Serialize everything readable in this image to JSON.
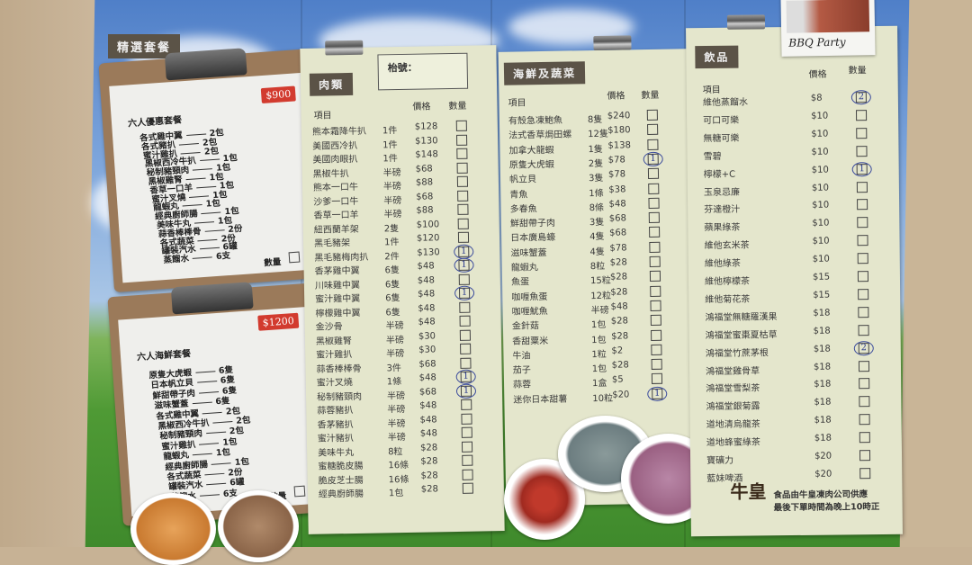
{
  "sections": {
    "featured": "精選套餐",
    "meat": "肉類",
    "seafood": "海鮮及蔬菜",
    "drinks": "飲品"
  },
  "table_no_label": "枱號：",
  "headers": {
    "item": "項目",
    "price": "價格",
    "qty": "數量"
  },
  "photo_caption": "BBQ Party",
  "packages": [
    {
      "title": "六人優惠套餐",
      "price": "$900",
      "qty_label": "數量",
      "items": [
        [
          "各式雞中翼",
          "2包"
        ],
        [
          "各式豬扒",
          "2包"
        ],
        [
          "蜜汁雞扒",
          "2包"
        ],
        [
          "黑椒西冷牛扒",
          "1包"
        ],
        [
          "秘制豬頸肉",
          "1包"
        ],
        [
          "黑椒雞腎",
          "1包"
        ],
        [
          "香草一口羊",
          "1包"
        ],
        [
          "蜜汁叉燒",
          "1包"
        ],
        [
          "龍蝦丸",
          "1包"
        ],
        [
          "經典廚師腸",
          "1包"
        ],
        [
          "美味牛丸",
          "1包"
        ],
        [
          "蒜香棒棒骨",
          "2份"
        ],
        [
          "各式蔬菜",
          "2份"
        ],
        [
          "罐裝汽水",
          "6罐"
        ],
        [
          "蒸餾水",
          "6支"
        ]
      ]
    },
    {
      "title": "六人海鮮套餐",
      "price": "$1200",
      "qty_label": "數量",
      "items": [
        [
          "原隻大虎蝦",
          "6隻"
        ],
        [
          "日本帆立貝",
          "6隻"
        ],
        [
          "鮮甜帶子肉",
          "6隻"
        ],
        [
          "滋味蟹蓋",
          "6隻"
        ],
        [
          "各式雞中翼",
          "2包"
        ],
        [
          "黑椒西冷牛扒",
          "2包"
        ],
        [
          "秘制豬頸肉",
          "2包"
        ],
        [
          "蜜汁雞扒",
          "1包"
        ],
        [
          "龍蝦丸",
          "1包"
        ],
        [
          "經典廚師腸",
          "1包"
        ],
        [
          "各式蔬菜",
          "2份"
        ],
        [
          "罐裝汽水",
          "6罐"
        ],
        [
          "蒸餾水",
          "6支"
        ]
      ]
    }
  ],
  "meat": [
    {
      "name": "熊本霜降牛扒",
      "unit": "1件",
      "price": "$128"
    },
    {
      "name": "美國西冷扒",
      "unit": "1件",
      "price": "$130"
    },
    {
      "name": "美國肉眼扒",
      "unit": "1件",
      "price": "$148"
    },
    {
      "name": "黑椒牛扒",
      "unit": "半磅",
      "price": "$68"
    },
    {
      "name": "熊本一口牛",
      "unit": "半磅",
      "price": "$88"
    },
    {
      "name": "沙爹一口牛",
      "unit": "半磅",
      "price": "$68"
    },
    {
      "name": "香草一口羊",
      "unit": "半磅",
      "price": "$88"
    },
    {
      "name": "紐西蘭羊架",
      "unit": "2隻",
      "price": "$100"
    },
    {
      "name": "黑毛豬架",
      "unit": "1件",
      "price": "$120"
    },
    {
      "name": "黑毛豬梅肉扒",
      "unit": "2件",
      "price": "$130",
      "qty": "1"
    },
    {
      "name": "香茅雞中翼",
      "unit": "6隻",
      "price": "$48",
      "qty": "1"
    },
    {
      "name": "川味雞中翼",
      "unit": "6隻",
      "price": "$48"
    },
    {
      "name": "蜜汁雞中翼",
      "unit": "6隻",
      "price": "$48",
      "qty": "1"
    },
    {
      "name": "檸檬雞中翼",
      "unit": "6隻",
      "price": "$48"
    },
    {
      "name": "金沙骨",
      "unit": "半磅",
      "price": "$48"
    },
    {
      "name": "黑椒雞腎",
      "unit": "半磅",
      "price": "$30"
    },
    {
      "name": "蜜汁雞扒",
      "unit": "半磅",
      "price": "$30"
    },
    {
      "name": "蒜香棒棒骨",
      "unit": "3件",
      "price": "$68"
    },
    {
      "name": "蜜汁叉燒",
      "unit": "1條",
      "price": "$48",
      "qty": "1"
    },
    {
      "name": "秘制豬頸肉",
      "unit": "半磅",
      "price": "$68",
      "qty": "1"
    },
    {
      "name": "蒜蓉豬扒",
      "unit": "半磅",
      "price": "$48"
    },
    {
      "name": "香茅豬扒",
      "unit": "半磅",
      "price": "$48"
    },
    {
      "name": "蜜汁豬扒",
      "unit": "半磅",
      "price": "$48"
    },
    {
      "name": "美味牛丸",
      "unit": "8粒",
      "price": "$28"
    },
    {
      "name": "蜜糖脆皮腸",
      "unit": "16條",
      "price": "$28"
    },
    {
      "name": "脆皮芝士腸",
      "unit": "16條",
      "price": "$28"
    },
    {
      "name": "經典廚師腸",
      "unit": "1包",
      "price": "$28"
    }
  ],
  "seafood": [
    {
      "name": "有殼急凍鮑魚",
      "unit": "8隻",
      "price": "$240"
    },
    {
      "name": "法式香草焗田螺",
      "unit": "12隻",
      "price": "$180"
    },
    {
      "name": "加拿大龍蝦",
      "unit": "1隻",
      "price": "$138"
    },
    {
      "name": "原隻大虎蝦",
      "unit": "2隻",
      "price": "$78",
      "qty": "1"
    },
    {
      "name": "帆立貝",
      "unit": "3隻",
      "price": "$78"
    },
    {
      "name": "青魚",
      "unit": "1條",
      "price": "$38"
    },
    {
      "name": "多春魚",
      "unit": "8條",
      "price": "$48"
    },
    {
      "name": "鮮甜帶子肉",
      "unit": "3隻",
      "price": "$68"
    },
    {
      "name": "日本廣島蠔",
      "unit": "4隻",
      "price": "$68"
    },
    {
      "name": "滋味蟹蓋",
      "unit": "4隻",
      "price": "$78"
    },
    {
      "name": "龍蝦丸",
      "unit": "8粒",
      "price": "$28"
    },
    {
      "name": "魚蛋",
      "unit": "15粒",
      "price": "$28"
    },
    {
      "name": "咖喱魚蛋",
      "unit": "12粒",
      "price": "$28"
    },
    {
      "name": "咖喱魷魚",
      "unit": "半磅",
      "price": "$48"
    },
    {
      "name": "金針菇",
      "unit": "1包",
      "price": "$28"
    },
    {
      "name": "香甜粟米",
      "unit": "1包",
      "price": "$28"
    },
    {
      "name": "牛油",
      "unit": "1粒",
      "price": "$2"
    },
    {
      "name": "茄子",
      "unit": "1包",
      "price": "$28"
    },
    {
      "name": "蒜蓉",
      "unit": "1盒",
      "price": "$5"
    },
    {
      "name": "迷你日本甜薯",
      "unit": "10粒",
      "price": "$20",
      "qty": "1"
    }
  ],
  "drinks": [
    {
      "name": "維他蒸餾水",
      "price": "$8",
      "qty": "2"
    },
    {
      "name": "可口可樂",
      "price": "$10"
    },
    {
      "name": "無糖可樂",
      "price": "$10"
    },
    {
      "name": "雪碧",
      "price": "$10"
    },
    {
      "name": "檸檬+C",
      "price": "$10",
      "qty": "1"
    },
    {
      "name": "玉泉忌廉",
      "price": "$10"
    },
    {
      "name": "芬達橙汁",
      "price": "$10"
    },
    {
      "name": "蘋果綠茶",
      "price": "$10"
    },
    {
      "name": "維他玄米茶",
      "price": "$10"
    },
    {
      "name": "維他綠茶",
      "price": "$10"
    },
    {
      "name": "維他檸檬茶",
      "price": "$15"
    },
    {
      "name": "維他菊花茶",
      "price": "$15"
    },
    {
      "name": "鴻福堂無糖羅漢果",
      "price": "$18"
    },
    {
      "name": "鴻福堂蜜棗夏枯草",
      "price": "$18"
    },
    {
      "name": "鴻福堂竹蔗茅根",
      "price": "$18",
      "qty": "2"
    },
    {
      "name": "鴻福堂雞骨草",
      "price": "$18"
    },
    {
      "name": "鴻福堂雪梨茶",
      "price": "$18"
    },
    {
      "name": "鴻福堂銀菊露",
      "price": "$18"
    },
    {
      "name": "道地清烏龍茶",
      "price": "$18"
    },
    {
      "name": "道地蜂蜜綠茶",
      "price": "$18"
    },
    {
      "name": "寶礦力",
      "price": "$20"
    },
    {
      "name": "藍妹啤酒",
      "price": "$20"
    }
  ],
  "footer": {
    "logo": "牛皇",
    "line1": "食品由牛皇凍肉公司供應",
    "line2": "最後下單時間為晚上10時正"
  },
  "colors": {
    "paper": "#e4e6cc",
    "tape": "#5b5347",
    "price_tag": "#d23b2f",
    "handwriting": "#2b3a8c"
  }
}
